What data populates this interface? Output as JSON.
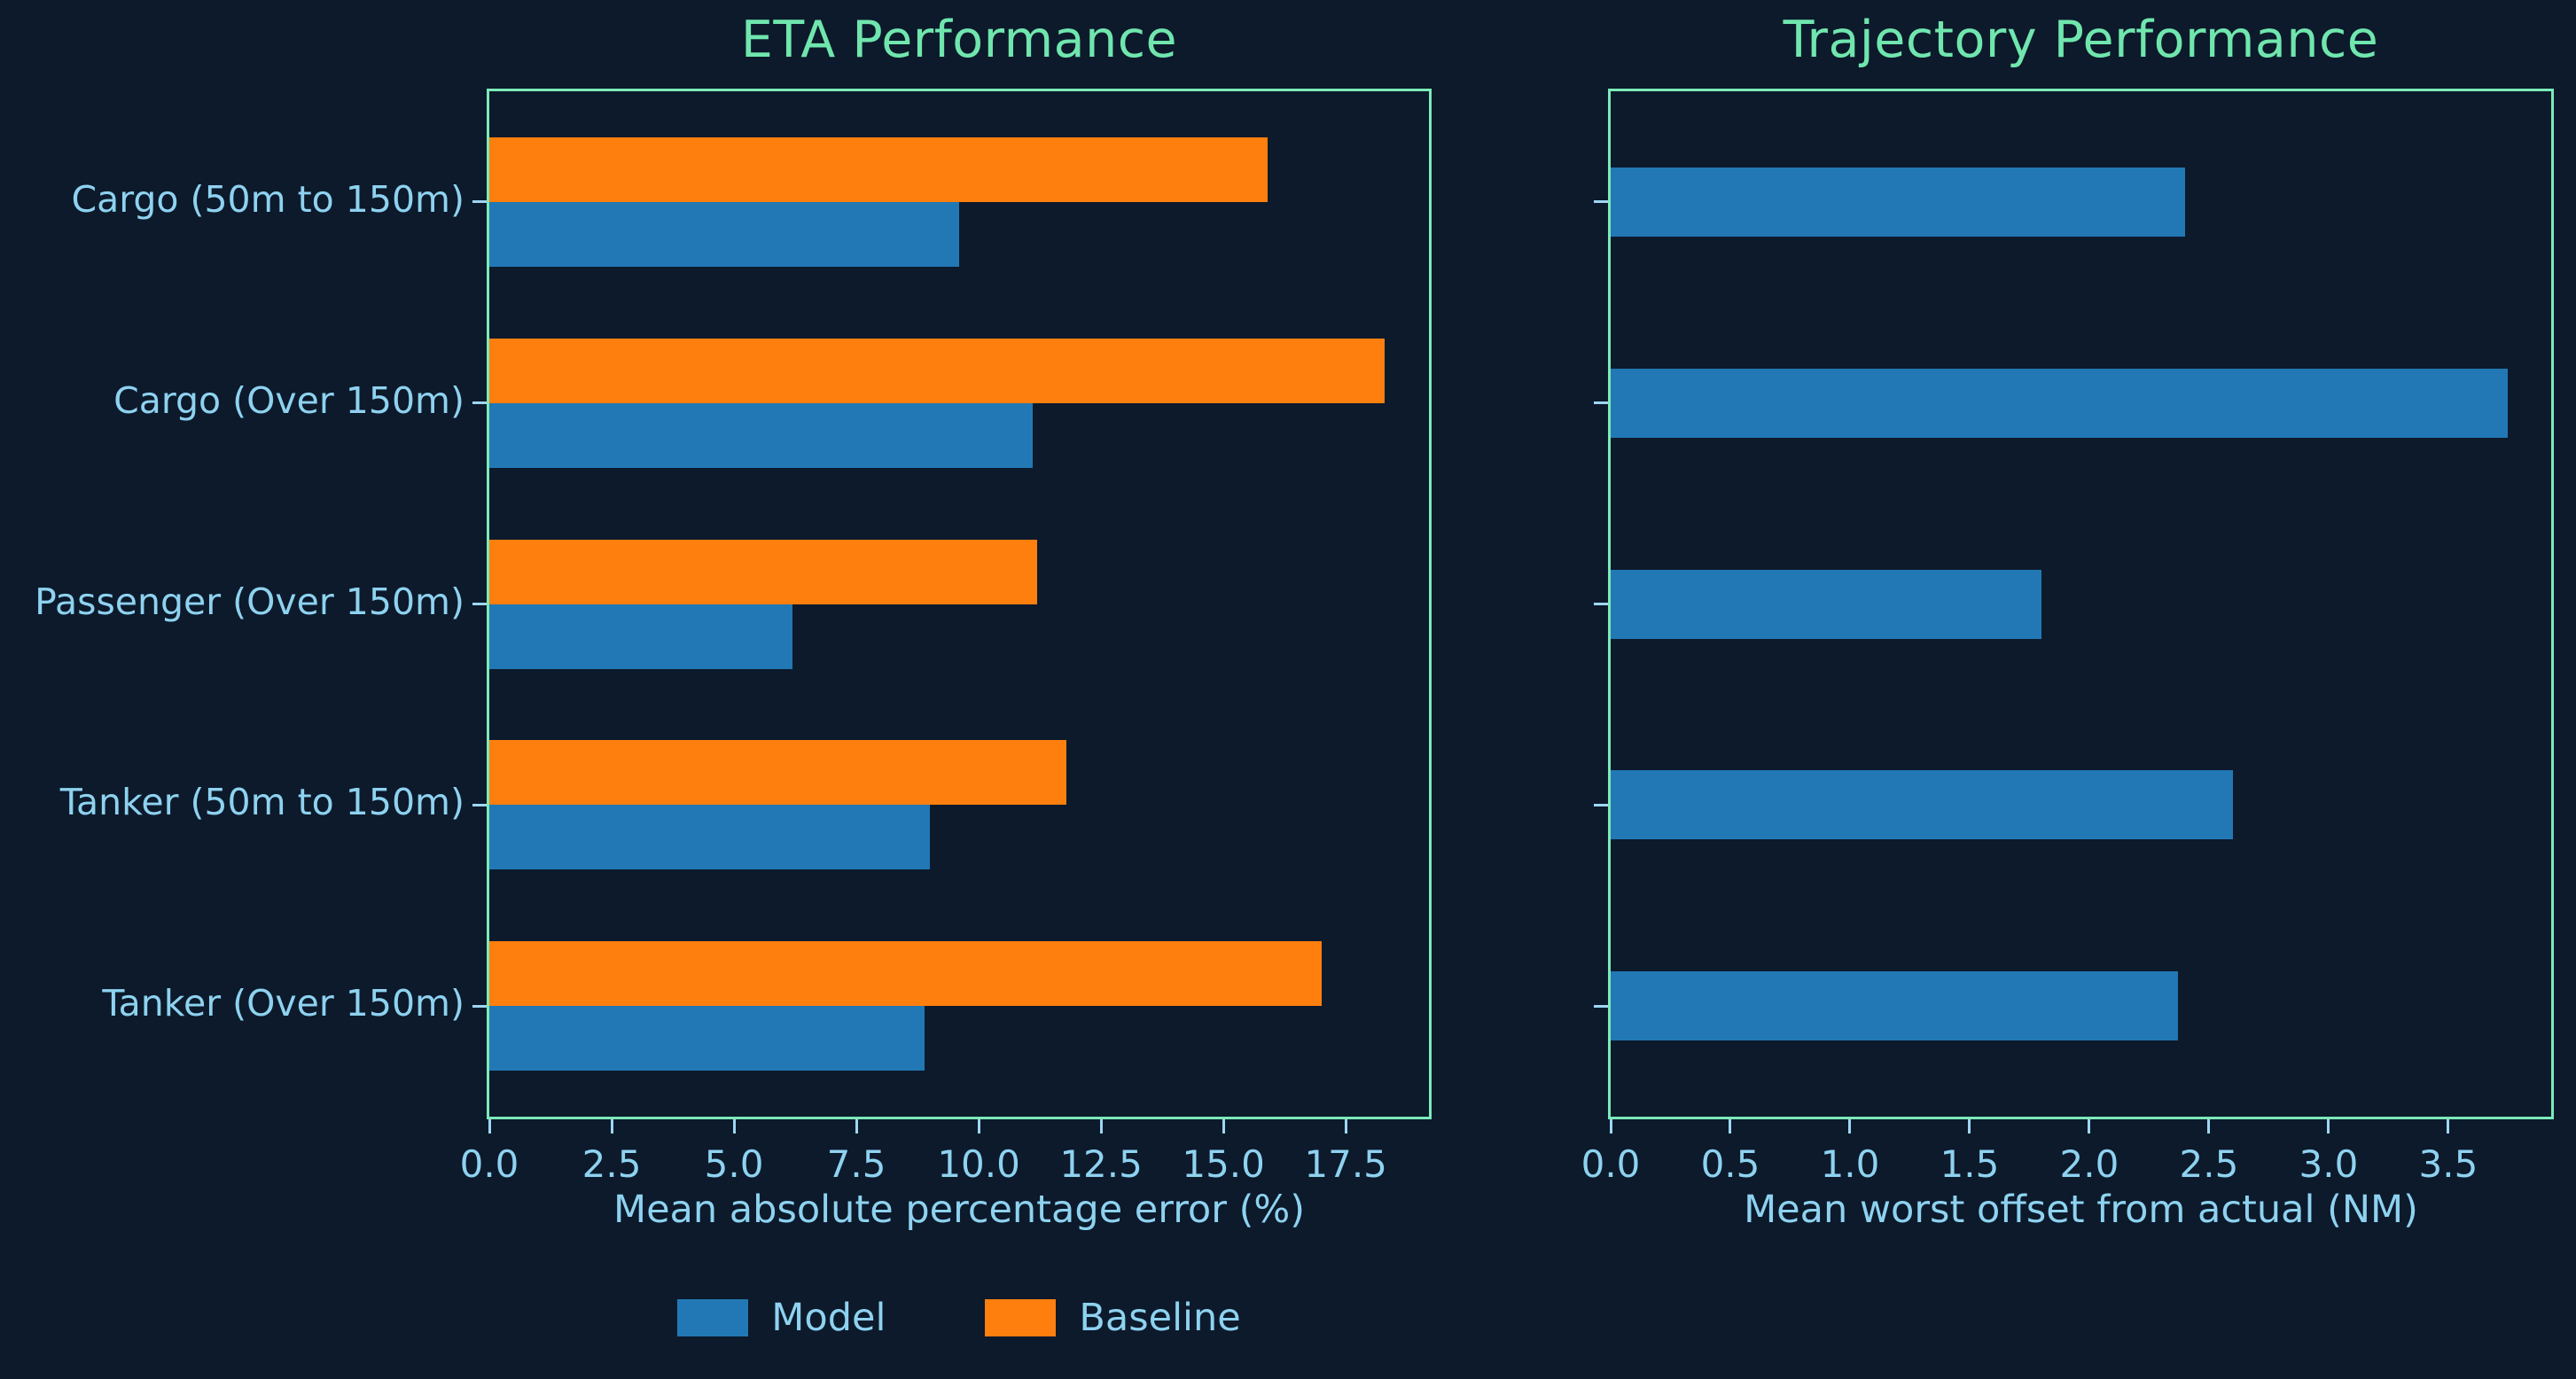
{
  "colors": {
    "background": "#0c1a2b",
    "axis_border": "#7ceab8",
    "title": "#70e6ae",
    "tick_label": "#8ed2f0",
    "model_blue": "#2278b5",
    "baseline_orange": "#ff7f0e"
  },
  "legend": {
    "items": [
      {
        "label": "Model",
        "color": "#2278b5"
      },
      {
        "label": "Baseline",
        "color": "#ff7f0e"
      }
    ]
  },
  "chart_data": [
    {
      "type": "bar",
      "orientation": "horizontal",
      "title": "ETA Performance",
      "xlabel": "Mean absolute percentage error (%)",
      "categories": [
        "Cargo (50m to 150m)",
        "Cargo (Over 150m)",
        "Passenger (Over 150m)",
        "Tanker (50m to 150m)",
        "Tanker (Over 150m)"
      ],
      "series": [
        {
          "name": "Model",
          "color": "#2278b5",
          "values": [
            9.6,
            11.1,
            6.2,
            9.0,
            8.9
          ]
        },
        {
          "name": "Baseline",
          "color": "#ff7f0e",
          "values": [
            15.9,
            18.3,
            11.2,
            11.8,
            17.0
          ]
        }
      ],
      "xlim": [
        0,
        19.2
      ],
      "xticks": [
        0.0,
        2.5,
        5.0,
        7.5,
        10.0,
        12.5,
        15.0,
        17.5
      ],
      "show_category_labels": true,
      "grid": false,
      "legend_position": "below-left-chart"
    },
    {
      "type": "bar",
      "orientation": "horizontal",
      "title": "Trajectory Performance",
      "xlabel": "Mean worst offset from actual (NM)",
      "categories": [
        "Cargo (50m to 150m)",
        "Cargo (Over 150m)",
        "Passenger (Over 150m)",
        "Tanker (50m to 150m)",
        "Tanker (Over 150m)"
      ],
      "series": [
        {
          "name": "Model",
          "color": "#2278b5",
          "values": [
            2.4,
            3.75,
            1.8,
            2.6,
            2.37
          ]
        }
      ],
      "xlim": [
        0,
        3.93
      ],
      "xticks": [
        0.0,
        0.5,
        1.0,
        1.5,
        2.0,
        2.5,
        3.0,
        3.5
      ],
      "show_category_labels": false,
      "grid": false
    }
  ]
}
